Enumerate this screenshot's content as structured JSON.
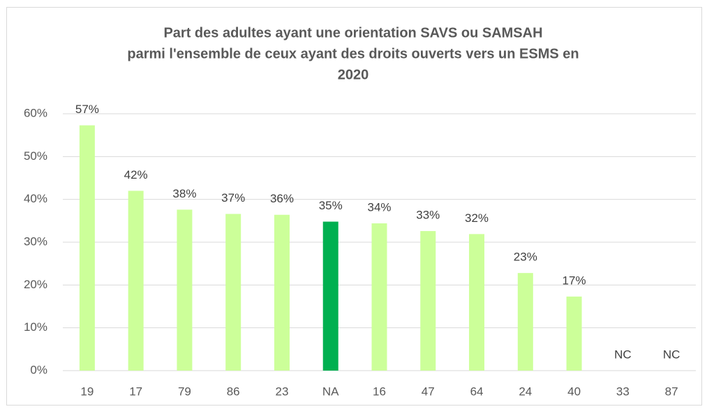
{
  "chart_data": {
    "type": "bar",
    "title": [
      "Part des adultes ayant une orientation SAVS ou SAMSAH",
      "parmi l'ensemble de ceux ayant des droits ouverts vers un ESMS en",
      "2020"
    ],
    "categories": [
      "19",
      "17",
      "79",
      "86",
      "23",
      "NA",
      "16",
      "47",
      "64",
      "24",
      "40",
      "33",
      "87"
    ],
    "values": [
      57.3,
      42,
      37.6,
      36.6,
      36.4,
      34.8,
      34.4,
      32.6,
      31.9,
      22.8,
      17.3,
      null,
      null
    ],
    "value_labels": [
      "57%",
      "42%",
      "38%",
      "37%",
      "36%",
      "35%",
      "34%",
      "33%",
      "32%",
      "23%",
      "17%",
      "NC",
      "NC"
    ],
    "colors": [
      "#ccff99",
      "#ccff99",
      "#ccff99",
      "#ccff99",
      "#ccff99",
      "#00b050",
      "#ccff99",
      "#ccff99",
      "#ccff99",
      "#ccff99",
      "#ccff99",
      "#ccff99",
      "#ccff99"
    ],
    "ylim": [
      0,
      60
    ],
    "yticks": [
      {
        "value": 0,
        "label": "0%"
      },
      {
        "value": 10,
        "label": "10%"
      },
      {
        "value": 20,
        "label": "20%"
      },
      {
        "value": 30,
        "label": "30%"
      },
      {
        "value": 40,
        "label": "40%"
      },
      {
        "value": 50,
        "label": "50%"
      },
      {
        "value": 60,
        "label": "60%"
      }
    ],
    "grid": true
  }
}
